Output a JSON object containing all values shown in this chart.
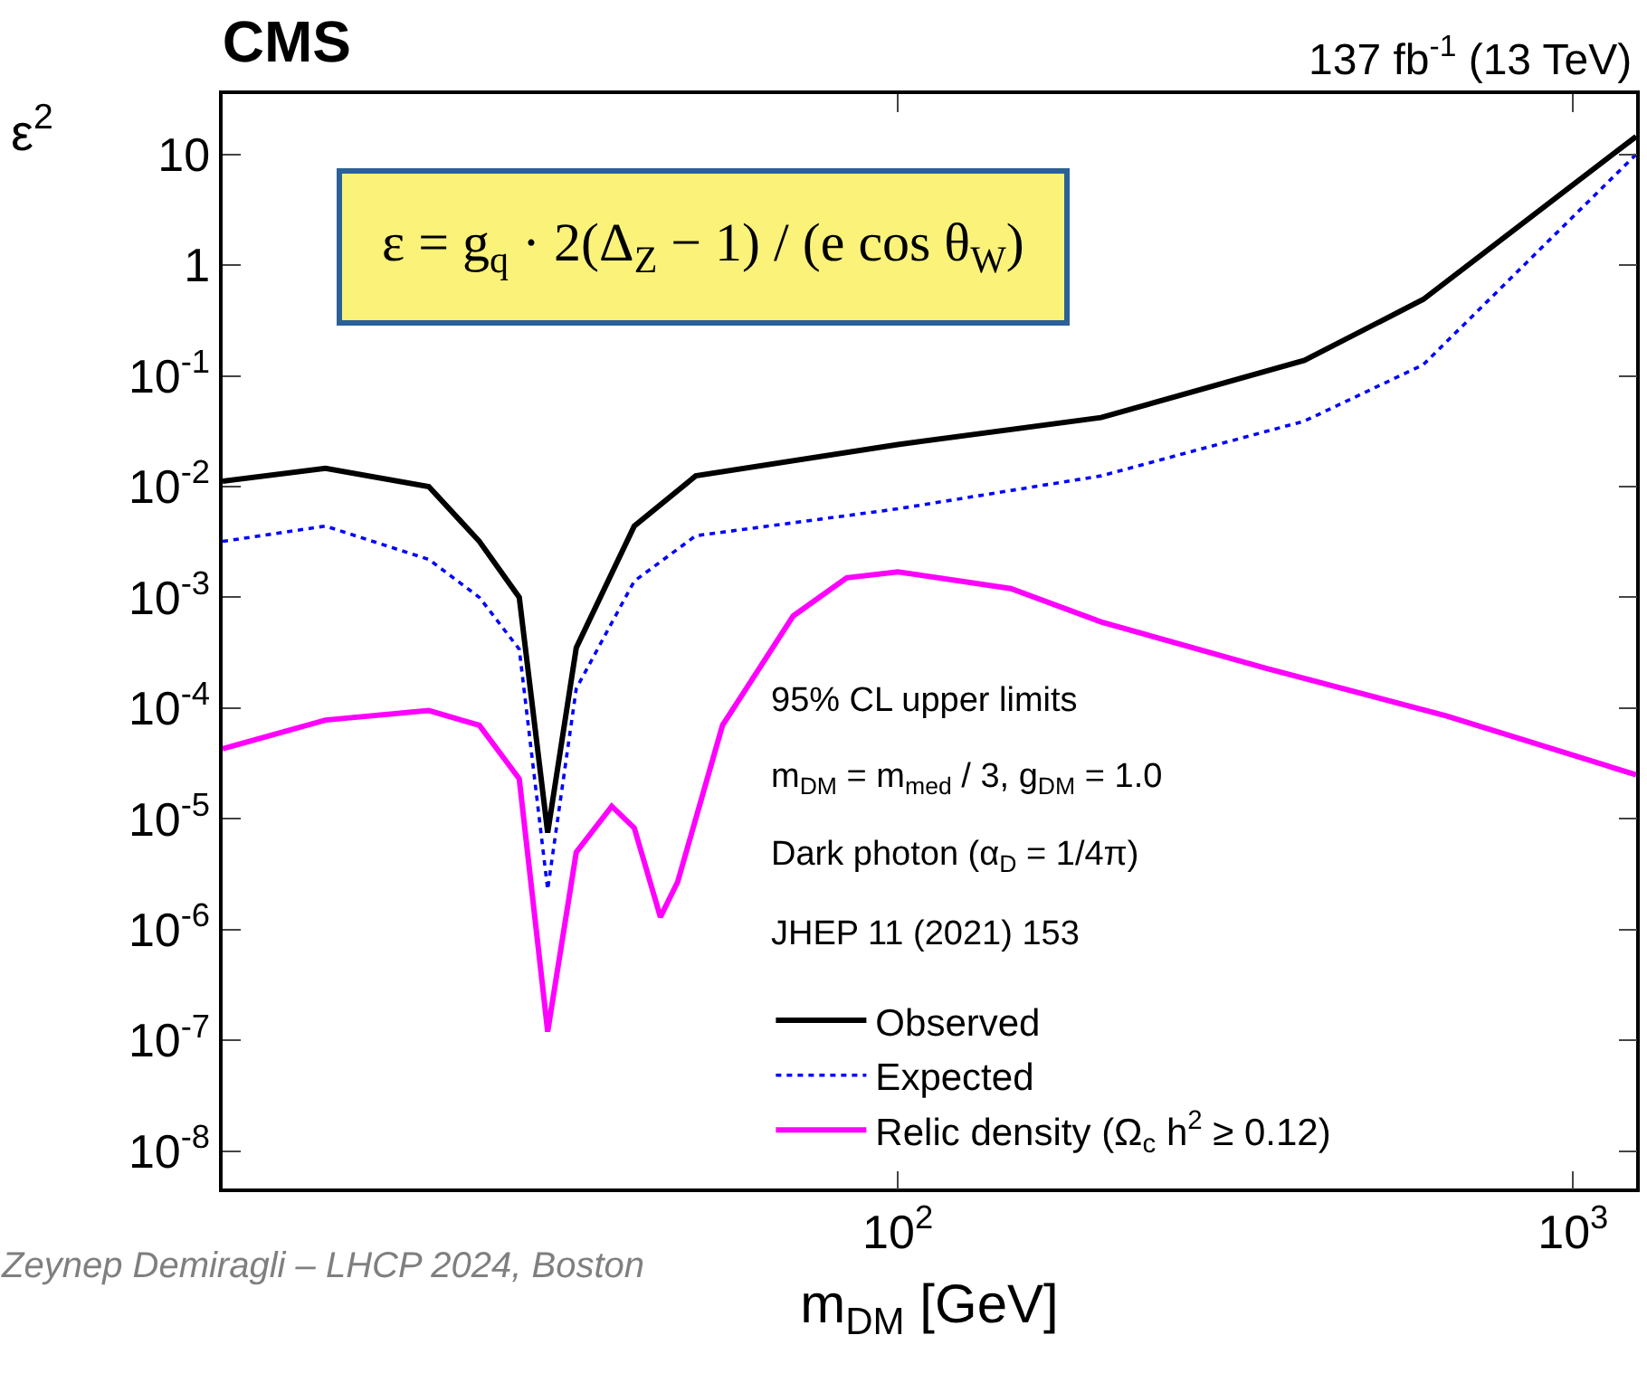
{
  "chart_data": {
    "type": "line",
    "title": "CMS",
    "xlabel": "m$_{DM}$ [GeV]",
    "ylabel": "ε$^{2}$",
    "x": [
      10,
      14.2,
      20.2,
      24,
      27.5,
      30.3,
      33.4,
      40.7,
      50.2,
      100,
      200,
      400,
      600,
      1240
    ],
    "series": [
      {
        "name": "Observed",
        "color": "#000000",
        "line_style": "solid",
        "values": [
          0.0112,
          0.0146,
          0.01,
          0.0032,
          0.001,
          7.5e-06,
          0.00035,
          0.0044,
          0.0125,
          0.024,
          0.042,
          0.138,
          0.49,
          14.5
        ]
      },
      {
        "name": "Expected",
        "color": "#0000ff",
        "line_style": "dotted",
        "values": [
          0.0032,
          0.0044,
          0.0022,
          0.001,
          0.00034,
          2.3e-06,
          0.00015,
          0.0014,
          0.0036,
          0.0063,
          0.0125,
          0.039,
          0.126,
          10
        ]
      },
      {
        "name": "Relic density (Ω$_{c}$ h$^{2}$ ≥ 0.12)",
        "color": "#ff00ff",
        "line_style": "solid",
        "x": [
          10,
          14.2,
          20.2,
          24,
          27.5,
          30.3,
          33.4,
          37.7,
          40.7,
          44.5,
          47.2,
          55,
          70,
          84,
          100,
          147,
          200,
          350,
          650,
          1240
        ],
        "values": [
          4.3e-05,
          7.8e-05,
          9.5e-05,
          7e-05,
          2.3e-05,
          1.2e-07,
          5e-06,
          1.3e-05,
          8.3e-06,
          1.3e-06,
          2.7e-06,
          7e-05,
          0.00068,
          0.0015,
          0.0017,
          0.0012,
          0.0006,
          0.00023,
          8.5e-05,
          2.5e-05
        ]
      }
    ],
    "log": "xy",
    "xlim": [
      10,
      1240
    ],
    "ylim": [
      4.6e-09,
      35
    ],
    "xticks": [
      {
        "value": 100,
        "label": "10$^{2}$"
      },
      {
        "value": 1000,
        "label": "10$^{3}$"
      }
    ],
    "yticks": [
      {
        "value": 1e-08,
        "label": "10$^{-8}$"
      },
      {
        "value": 1e-07,
        "label": "10$^{-7}$"
      },
      {
        "value": 1e-06,
        "label": "10$^{-6}$"
      },
      {
        "value": 1e-05,
        "label": "10$^{-5}$"
      },
      {
        "value": 0.0001,
        "label": "10$^{-4}$"
      },
      {
        "value": 0.001,
        "label": "10$^{-3}$"
      },
      {
        "value": 0.01,
        "label": "10$^{-2}$"
      },
      {
        "value": 0.1,
        "label": "10$^{-1}$"
      },
      1,
      10
    ],
    "marker": "none",
    "legend": "bottom right",
    "annotations": [
      "137 fb$^{-1}$ (13 TeV)",
      "95% CL upper limits",
      "m$_{DM}$ = m$_{med}$ / 3, g$_{DM}$ = 1.0",
      "Dark photon (α$_{D}$ = 1/4π)",
      "JHEP 11 (2021) 153",
      "ε = g$_{q}$ · 2(Δ$_{Z}$ − 1) / (e cos θ$_{W}$)",
      "Zeynep Demiragli – LHCP 2024, Boston"
    ]
  }
}
